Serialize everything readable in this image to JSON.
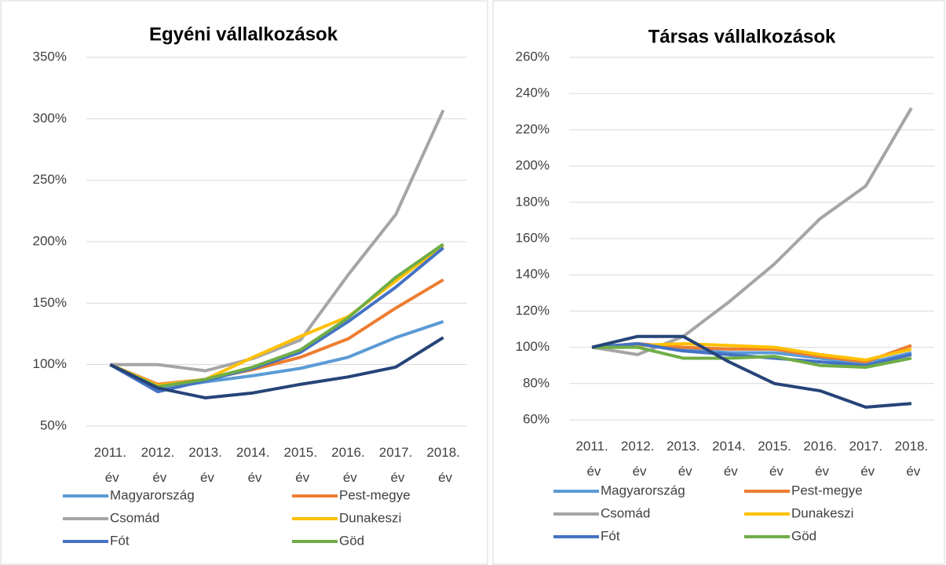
{
  "chart_data": [
    {
      "type": "line",
      "title": "Egyéni vállalkozások",
      "categories": [
        "2011. év",
        "2012. év",
        "2013. év",
        "2014. év",
        "2015. év",
        "2016. év",
        "2017. év",
        "2018. év"
      ],
      "ylim": [
        50,
        350
      ],
      "yticks": [
        {
          "value": 50,
          "label": "50%"
        },
        {
          "value": 100,
          "label": "100%"
        },
        {
          "value": 150,
          "label": "150%"
        },
        {
          "value": 200,
          "label": "200%"
        },
        {
          "value": 250,
          "label": "250%"
        },
        {
          "value": 300,
          "label": "300%"
        },
        {
          "value": 350,
          "label": "350%"
        }
      ],
      "grid": true,
      "series": [
        {
          "name": "Magyarország",
          "color": "#5b9bd5",
          "values": [
            100,
            80,
            86,
            91,
            97,
            106,
            122,
            135
          ]
        },
        {
          "name": "Pest-megye",
          "color": "#ed7d31",
          "values": [
            100,
            84,
            88,
            96,
            106,
            121,
            146,
            169
          ]
        },
        {
          "name": "Csomád",
          "color": "#a5a5a5",
          "values": [
            100,
            100,
            95,
            105,
            120,
            173,
            222,
            307
          ]
        },
        {
          "name": "Dunakeszi",
          "color": "#ffc000",
          "values": [
            100,
            83,
            88,
            106,
            123,
            139,
            168,
            197
          ]
        },
        {
          "name": "Fót",
          "color": "#4472c4",
          "values": [
            100,
            78,
            87,
            97,
            110,
            135,
            163,
            195
          ]
        },
        {
          "name": "Göd",
          "color": "#70ad47",
          "values": [
            100,
            82,
            88,
            98,
            112,
            138,
            171,
            198
          ]
        },
        {
          "color": "#264478",
          "values": [
            100,
            81,
            73,
            77,
            84,
            90,
            98,
            122
          ]
        }
      ]
    },
    {
      "type": "line",
      "title": "Társas vállalkozások",
      "categories": [
        "2011. év",
        "2012. év",
        "2013. év",
        "2014. év",
        "2015. év",
        "2016. év",
        "2017. év",
        "2018. év"
      ],
      "ylim": [
        60,
        260
      ],
      "yticks": [
        {
          "value": 60,
          "label": "60%"
        },
        {
          "value": 80,
          "label": "80%"
        },
        {
          "value": 100,
          "label": "100%"
        },
        {
          "value": 120,
          "label": "120%"
        },
        {
          "value": 140,
          "label": "140%"
        },
        {
          "value": 160,
          "label": "160%"
        },
        {
          "value": 180,
          "label": "180%"
        },
        {
          "value": 200,
          "label": "200%"
        },
        {
          "value": 220,
          "label": "220%"
        },
        {
          "value": 240,
          "label": "240%"
        },
        {
          "value": 260,
          "label": "260%"
        }
      ],
      "grid": true,
      "series": [
        {
          "name": "Magyarország",
          "color": "#5b9bd5",
          "values": [
            100,
            102,
            99,
            97,
            97,
            94,
            91,
            97
          ]
        },
        {
          "name": "Pest-megye",
          "color": "#ed7d31",
          "values": [
            100,
            102,
            100,
            99,
            99,
            95,
            92,
            101
          ]
        },
        {
          "name": "Csomád",
          "color": "#a5a5a5",
          "values": [
            100,
            96,
            106,
            125,
            146,
            171,
            189,
            232
          ]
        },
        {
          "name": "Dunakeszi",
          "color": "#ffc000",
          "values": [
            100,
            101,
            102,
            101,
            100,
            96,
            93,
            99
          ]
        },
        {
          "name": "Fót",
          "color": "#4472c4",
          "values": [
            100,
            102,
            98,
            96,
            94,
            92,
            90,
            96
          ]
        },
        {
          "name": "Göd",
          "color": "#70ad47",
          "values": [
            100,
            100,
            94,
            94,
            95,
            90,
            89,
            94
          ]
        },
        {
          "color": "#264478",
          "values": [
            100,
            106,
            106,
            92,
            80,
            76,
            67,
            69
          ]
        }
      ]
    }
  ]
}
